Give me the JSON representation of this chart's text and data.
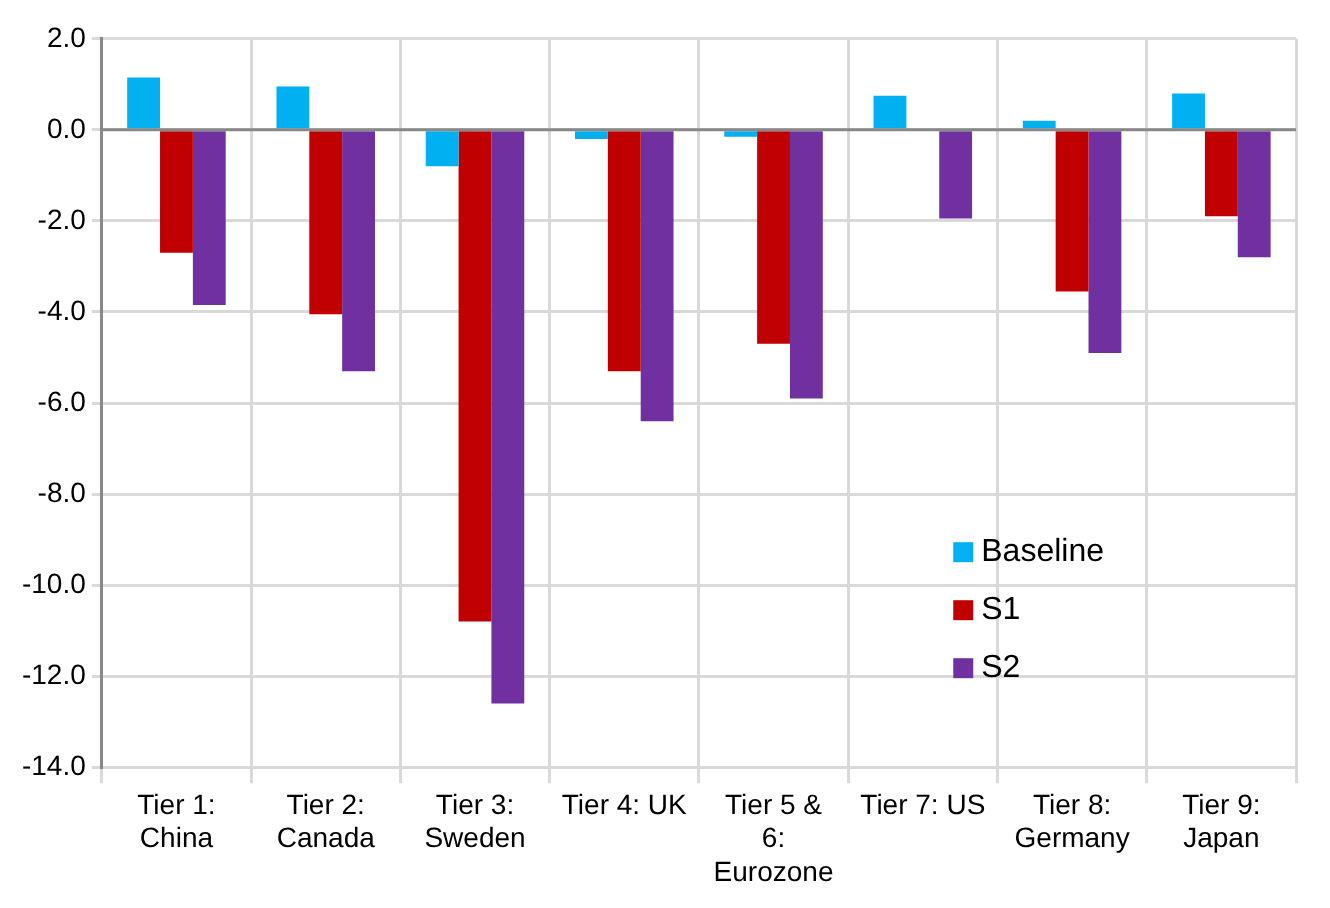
{
  "chart_data": {
    "type": "bar",
    "categories": [
      "Tier 1: China",
      "Tier 2: Canada",
      "Tier 3: Sweden",
      "Tier 4: UK",
      "Tier 5 & 6: Eurozone",
      "Tier 7: US",
      "Tier 8: Germany",
      "Tier 9: Japan"
    ],
    "series": [
      {
        "name": "Baseline",
        "color": "#00b0f0",
        "values": [
          1.15,
          0.95,
          -0.8,
          -0.2,
          -0.15,
          0.75,
          0.2,
          0.8
        ]
      },
      {
        "name": "S1",
        "color": "#c00000",
        "values": [
          -2.7,
          -4.05,
          -10.8,
          -5.3,
          -4.7,
          0,
          -3.55,
          -1.9
        ]
      },
      {
        "name": "S2",
        "color": "#7030a0",
        "values": [
          -3.85,
          -5.3,
          -12.6,
          -6.4,
          -5.9,
          -1.95,
          -4.9,
          -2.8
        ]
      }
    ],
    "ylim": [
      -14,
      2
    ],
    "yticks": [
      {
        "value": -14,
        "label": "-14.0"
      },
      {
        "value": -12,
        "label": "-12.0"
      },
      {
        "value": -10,
        "label": "-10.0"
      },
      {
        "value": -8,
        "label": "-8.0"
      },
      {
        "value": -6,
        "label": "-6.0"
      },
      {
        "value": -4,
        "label": "-4.0"
      },
      {
        "value": -2,
        "label": "-2.0"
      },
      {
        "value": 0,
        "label": "0.0"
      },
      {
        "value": 2,
        "label": "2.0"
      }
    ],
    "grid": true,
    "legend": "bottom right"
  }
}
